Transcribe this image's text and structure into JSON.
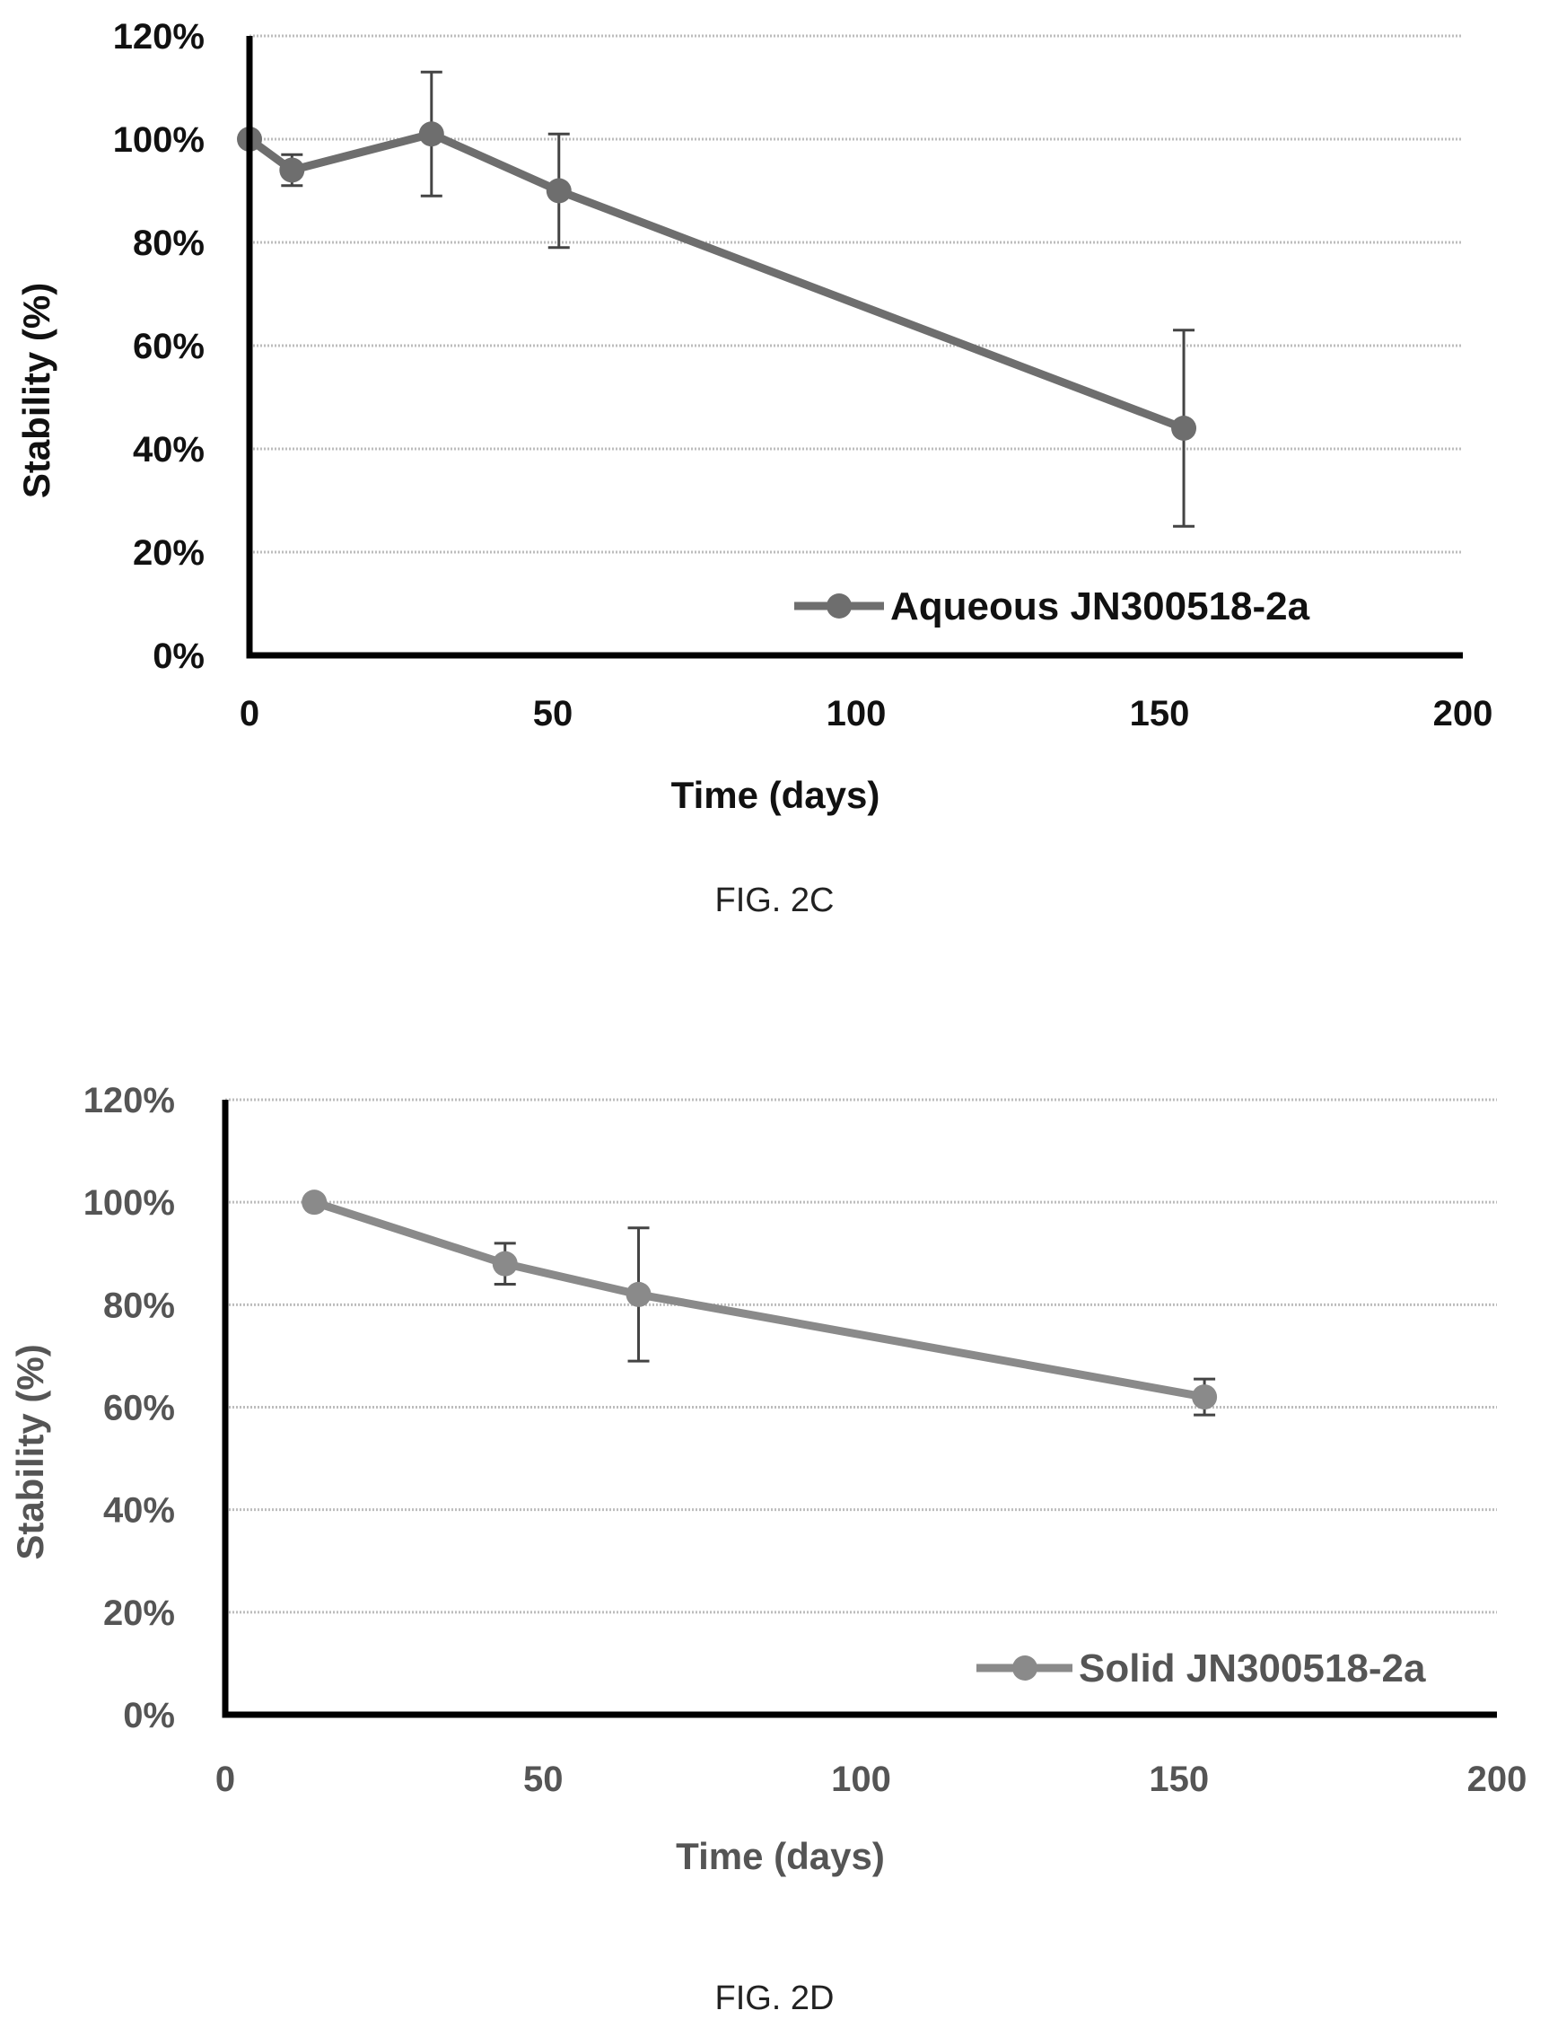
{
  "chart_data": [
    {
      "type": "line",
      "caption": "FIG. 2C",
      "xlabel": "Time (days)",
      "ylabel": "Stability (%)",
      "xlim": [
        0,
        200
      ],
      "ylim": [
        0,
        120
      ],
      "xticks": [
        "0",
        "50",
        "100",
        "150",
        "200"
      ],
      "yticks": [
        "0%",
        "20%",
        "40%",
        "60%",
        "80%",
        "100%",
        "120%"
      ],
      "grid": true,
      "legend_position": "bottom-right",
      "series": [
        {
          "name": "Aqueous JN300518-2a",
          "x": [
            0,
            7,
            30,
            51,
            154
          ],
          "y": [
            100,
            94,
            101,
            90,
            44
          ],
          "error": [
            0,
            3,
            12,
            11,
            19
          ]
        }
      ]
    },
    {
      "type": "line",
      "caption": "FIG. 2D",
      "xlabel": "Time (days)",
      "ylabel": "Stability (%)",
      "xlim": [
        0,
        200
      ],
      "ylim": [
        0,
        120
      ],
      "xticks": [
        "0",
        "50",
        "100",
        "150",
        "200"
      ],
      "yticks": [
        "0%",
        "20%",
        "40%",
        "60%",
        "80%",
        "100%",
        "120%"
      ],
      "grid": true,
      "legend_position": "bottom-right",
      "series": [
        {
          "name": "Solid JN300518-2a",
          "x": [
            14,
            44,
            65,
            154
          ],
          "y": [
            100,
            88,
            82,
            62
          ],
          "error": [
            0,
            4,
            13,
            3.5
          ]
        }
      ]
    }
  ]
}
